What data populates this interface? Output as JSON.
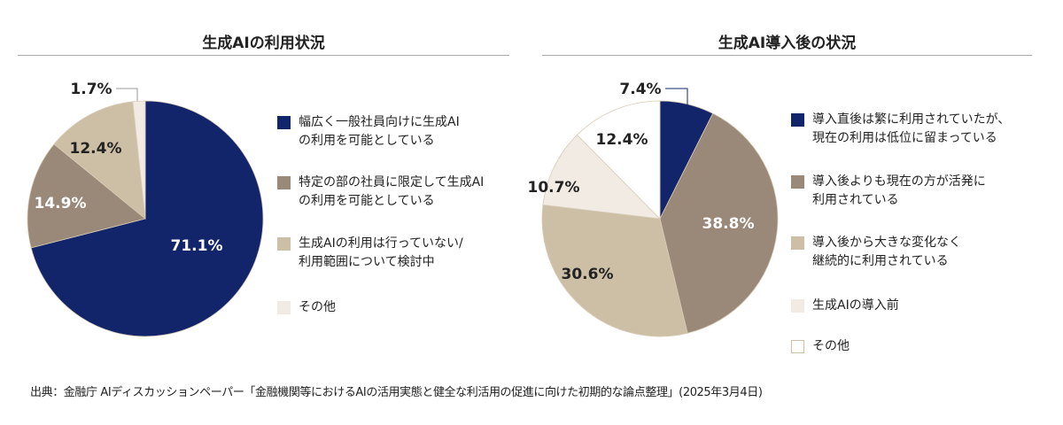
{
  "chart_data": [
    {
      "type": "pie",
      "title": "生成AIの利用状況",
      "slices": [
        {
          "label": "幅広く一般社員向けに生成AI\nの利用を可能としている",
          "value": 71.1,
          "display": "71.1%",
          "color": "#13256a",
          "text_color": "#ffffff"
        },
        {
          "label": "特定の部の社員に限定して生成AI\nの利用を可能としている",
          "value": 14.9,
          "display": "14.9%",
          "color": "#9a8878",
          "text_color": "#ffffff"
        },
        {
          "label": "生成AIの利用は行っていない/\n利用範囲について検討中",
          "value": 12.4,
          "display": "12.4%",
          "color": "#cdbfa6",
          "text_color": "#222222"
        },
        {
          "label": "その他",
          "value": 1.7,
          "display": "1.7%",
          "color": "#f1ebe3",
          "text_color": "#222222"
        }
      ]
    },
    {
      "type": "pie",
      "title": "生成AI導入後の状況",
      "slices": [
        {
          "label": "導入直後は繁に利用されていたが、\n現在の利用は低位に留まっている",
          "value": 7.4,
          "display": "7.4%",
          "color": "#13256a",
          "text_color": "#222222"
        },
        {
          "label": "導入後よりも現在の方が活発に\n利用されている",
          "value": 38.8,
          "display": "38.8%",
          "color": "#9a8878",
          "text_color": "#ffffff"
        },
        {
          "label": "導入後から大きな変化なく\n継続的に利用されている",
          "value": 30.6,
          "display": "30.6%",
          "color": "#cdbfa6",
          "text_color": "#222222"
        },
        {
          "label": "生成AIの導入前",
          "value": 10.7,
          "display": "10.7%",
          "color": "#f1ebe3",
          "text_color": "#222222"
        },
        {
          "label": "その他",
          "value": 12.4,
          "display": "12.4%",
          "color": "#ffffff",
          "text_color": "#222222"
        }
      ]
    }
  ],
  "source": "出典：金融庁 AIディスカッションペーパー「金融機関等におけるAIの活用実態と健全な利活用の促進に向けた初期的な論点整理」(2025年3月4日)"
}
